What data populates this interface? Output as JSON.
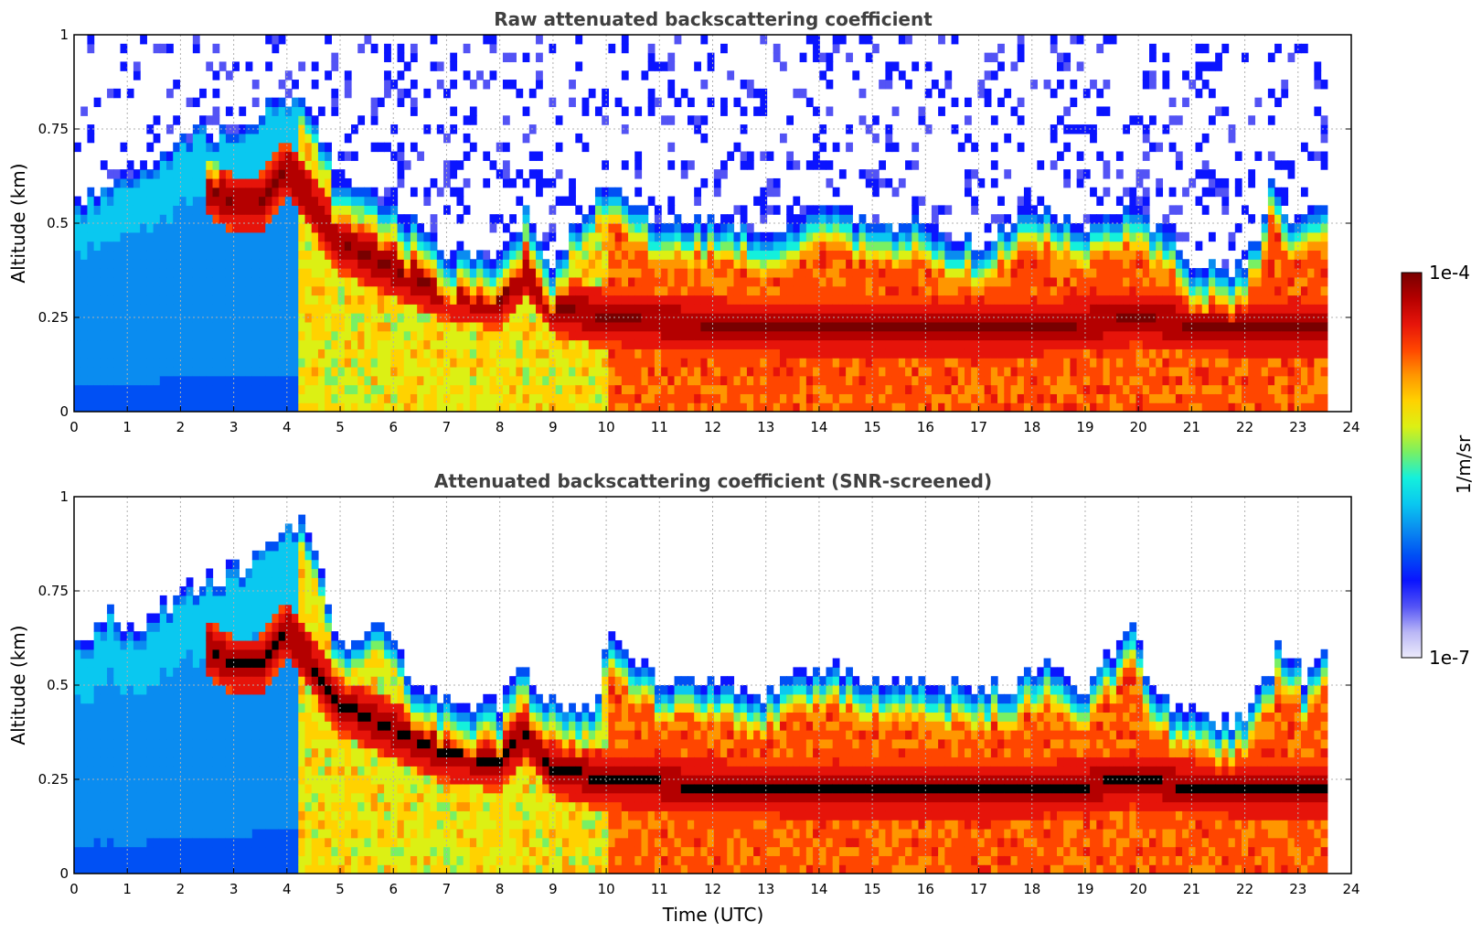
{
  "figure": {
    "colorbar": {
      "label": "1/m/sr",
      "max_label": "1e-4",
      "min_label": "1e-7",
      "colors": [
        "#ecebfb",
        "#b9b6f6",
        "#5353f5",
        "#0a14ff",
        "#0050f4",
        "#0a8cf0",
        "#0ac8f0",
        "#14f0dc",
        "#78f064",
        "#dcf014",
        "#ffd200",
        "#ff9600",
        "#ff4600",
        "#e6140a",
        "#b40000",
        "#780000"
      ]
    },
    "panels": [
      {
        "title": "Raw attenuated backscattering coefficient",
        "xlabel": "",
        "ylabel": "Altitude (km)"
      },
      {
        "title": "Attenuated backscattering coefficient (SNR-screened)",
        "xlabel": "Time (UTC)",
        "ylabel": "Altitude (km)"
      }
    ]
  },
  "chart_data": [
    {
      "type": "heatmap",
      "title": "Raw attenuated backscattering coefficient",
      "xlabel": "",
      "ylabel": "Altitude (km)",
      "xlim": [
        0,
        24
      ],
      "ylim": [
        0,
        1
      ],
      "xticks": [
        "0",
        "1",
        "2",
        "3",
        "4",
        "5",
        "6",
        "7",
        "8",
        "9",
        "10",
        "11",
        "12",
        "13",
        "14",
        "15",
        "16",
        "17",
        "18",
        "19",
        "20",
        "21",
        "22",
        "23",
        "24"
      ],
      "yticks": [
        "0",
        "0.25",
        "0.5",
        "0.75",
        "1"
      ],
      "grid": true,
      "colorbar": {
        "label": "1/m/sr",
        "min": "1e-7",
        "max": "1e-4",
        "scale": "log"
      },
      "data_end_hour": 23.55,
      "boundary_layer_top_km": {
        "hours": [
          0,
          0.5,
          1,
          1.5,
          2,
          2.5,
          3,
          3.5,
          4,
          4.3,
          5,
          6,
          7,
          8,
          8.5,
          9,
          10,
          11,
          12,
          13,
          14,
          15,
          16,
          17,
          18,
          19,
          20,
          21,
          22,
          22.5,
          23,
          23.5
        ],
        "values": [
          0.55,
          0.6,
          0.65,
          0.65,
          0.72,
          0.75,
          0.75,
          0.8,
          0.85,
          0.85,
          0.6,
          0.55,
          0.42,
          0.4,
          0.55,
          0.4,
          0.62,
          0.5,
          0.5,
          0.48,
          0.55,
          0.5,
          0.5,
          0.45,
          0.55,
          0.5,
          0.55,
          0.4,
          0.38,
          0.6,
          0.5,
          0.58
        ]
      },
      "peak_layer_km": {
        "hours": [
          2.5,
          3,
          3.5,
          4,
          4.5,
          5,
          6,
          7,
          8,
          8.5,
          9,
          10,
          12,
          14,
          16,
          18,
          20,
          21,
          22
        ],
        "values": [
          0.6,
          0.55,
          0.55,
          0.65,
          0.55,
          0.45,
          0.38,
          0.32,
          0.3,
          0.38,
          0.28,
          0.25,
          0.23,
          0.22,
          0.22,
          0.22,
          0.25,
          0.23,
          0.22
        ]
      }
    },
    {
      "type": "heatmap",
      "title": "Attenuated backscattering coefficient (SNR-screened)",
      "xlabel": "Time (UTC)",
      "ylabel": "Altitude (km)",
      "xlim": [
        0,
        24
      ],
      "ylim": [
        0,
        1
      ],
      "xticks": [
        "0",
        "1",
        "2",
        "3",
        "4",
        "5",
        "6",
        "7",
        "8",
        "9",
        "10",
        "11",
        "12",
        "13",
        "14",
        "15",
        "16",
        "17",
        "18",
        "19",
        "20",
        "21",
        "22",
        "23",
        "24"
      ],
      "yticks": [
        "0",
        "0.25",
        "0.5",
        "0.75",
        "1"
      ],
      "grid": true,
      "colorbar": {
        "label": "1/m/sr",
        "min": "1e-7",
        "max": "1e-4",
        "scale": "log"
      },
      "data_end_hour": 23.55,
      "screened_top_km": {
        "hours": [
          0,
          0.7,
          1.2,
          2,
          2.5,
          3,
          3.5,
          4,
          4.3,
          5,
          5.8,
          6.5,
          7,
          8,
          8.4,
          9,
          9.8,
          10,
          11,
          12,
          13,
          14,
          15,
          16,
          17,
          18.3,
          19,
          19.9,
          20.3,
          21,
          22,
          22.7,
          23.1,
          23.5
        ],
        "values": [
          0.6,
          0.7,
          0.62,
          0.76,
          0.78,
          0.8,
          0.86,
          0.93,
          0.95,
          0.62,
          0.65,
          0.48,
          0.46,
          0.44,
          0.55,
          0.46,
          0.44,
          0.62,
          0.52,
          0.5,
          0.48,
          0.55,
          0.52,
          0.52,
          0.48,
          0.55,
          0.5,
          0.64,
          0.48,
          0.42,
          0.42,
          0.62,
          0.52,
          0.58
        ]
      },
      "saturated_layer_km": {
        "hours": [
          2.5,
          3,
          3.5,
          4,
          4.5,
          5,
          6,
          7,
          8,
          8.5,
          9,
          10,
          12,
          14,
          16,
          18,
          20,
          21,
          22
        ],
        "values": [
          0.6,
          0.55,
          0.55,
          0.65,
          0.55,
          0.45,
          0.38,
          0.32,
          0.3,
          0.38,
          0.28,
          0.25,
          0.23,
          0.22,
          0.22,
          0.22,
          0.25,
          0.23,
          0.22
        ]
      }
    }
  ]
}
